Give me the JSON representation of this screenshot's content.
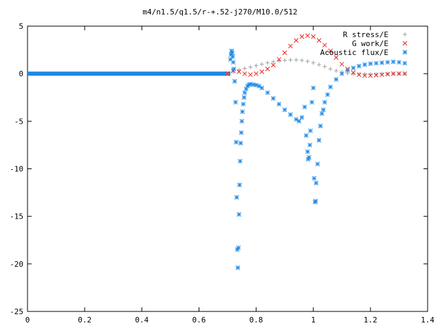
{
  "chart_data": {
    "type": "scatter",
    "title": "m4/n1.5/q1.5/r-+.52-j270/M10.0/512",
    "xlabel": "",
    "ylabel": "",
    "xlim": [
      0,
      1.4
    ],
    "ylim": [
      -25,
      5
    ],
    "x_ticks": [
      0,
      0.2,
      0.4,
      0.6,
      0.8,
      1,
      1.2,
      1.4
    ],
    "x_tick_labels": [
      "0",
      "0.2",
      "0.4",
      "0.6",
      "0.8",
      "1",
      "1.2",
      "1.4"
    ],
    "y_ticks": [
      -25,
      -20,
      -15,
      -10,
      -5,
      0,
      5
    ],
    "y_tick_labels": [
      "-25",
      "-20",
      "-15",
      "-10",
      "-5",
      "0",
      "5"
    ],
    "grid": false,
    "legend_position": "top-right",
    "series": [
      {
        "name": "R stress/E",
        "marker": "+",
        "color": "#a0a0a0",
        "x": [
          0.7,
          0.72,
          0.74,
          0.76,
          0.78,
          0.8,
          0.82,
          0.84,
          0.86,
          0.88,
          0.9,
          0.92,
          0.94,
          0.96,
          0.98,
          1.0,
          1.02,
          1.04,
          1.06,
          1.08,
          1.1,
          1.12,
          1.14,
          1.16,
          1.18,
          1.2,
          1.22,
          1.24,
          1.26,
          1.28,
          1.3,
          1.32
        ],
        "y": [
          0.0,
          0.2,
          0.4,
          0.55,
          0.7,
          0.85,
          1.0,
          1.15,
          1.25,
          1.35,
          1.4,
          1.45,
          1.45,
          1.4,
          1.3,
          1.15,
          0.95,
          0.75,
          0.5,
          0.3,
          0.15,
          0.05,
          0.0,
          -0.05,
          -0.05,
          -0.05,
          -0.05,
          -0.03,
          -0.02,
          0.0,
          0.0,
          0.0
        ]
      },
      {
        "name": "G work/E",
        "marker": "x",
        "color": "#e8231c",
        "x": [
          0.7,
          0.72,
          0.74,
          0.76,
          0.78,
          0.8,
          0.82,
          0.84,
          0.86,
          0.88,
          0.9,
          0.92,
          0.94,
          0.96,
          0.98,
          1.0,
          1.02,
          1.04,
          1.06,
          1.08,
          1.1,
          1.12,
          1.14,
          1.16,
          1.18,
          1.2,
          1.22,
          1.24,
          1.26,
          1.28,
          1.3,
          1.32
        ],
        "y": [
          0.0,
          0.3,
          0.2,
          0.0,
          -0.1,
          0.0,
          0.2,
          0.5,
          0.9,
          1.5,
          2.2,
          2.9,
          3.5,
          3.9,
          4.0,
          3.9,
          3.5,
          3.0,
          2.4,
          1.7,
          1.0,
          0.5,
          0.1,
          -0.1,
          -0.2,
          -0.2,
          -0.15,
          -0.1,
          -0.05,
          0.0,
          0.0,
          0.0
        ]
      },
      {
        "name": "Acoustic flux/E",
        "marker": "*",
        "color": "#1e8ae6",
        "x": [
          0.71,
          0.712,
          0.714,
          0.716,
          0.718,
          0.72,
          0.722,
          0.725,
          0.728,
          0.73,
          0.732,
          0.734,
          0.736,
          0.738,
          0.74,
          0.742,
          0.744,
          0.746,
          0.748,
          0.75,
          0.752,
          0.755,
          0.758,
          0.76,
          0.765,
          0.77,
          0.775,
          0.78,
          0.79,
          0.8,
          0.81,
          0.82,
          0.84,
          0.86,
          0.88,
          0.9,
          0.92,
          0.94,
          0.95,
          0.96,
          0.97,
          0.975,
          0.98,
          0.982,
          0.985,
          0.988,
          0.99,
          0.995,
          1.0,
          1.003,
          1.006,
          1.008,
          1.01,
          1.015,
          1.02,
          1.025,
          1.03,
          1.035,
          1.04,
          1.05,
          1.06,
          1.08,
          1.1,
          1.12,
          1.14,
          1.16,
          1.18,
          1.2,
          1.22,
          1.24,
          1.26,
          1.28,
          1.3,
          1.32
        ],
        "y": [
          1.5,
          2.0,
          2.4,
          2.2,
          1.8,
          1.2,
          0.5,
          -0.8,
          -3.0,
          -7.2,
          -13.0,
          -18.5,
          -20.4,
          -18.3,
          -14.8,
          -11.7,
          -9.2,
          -7.3,
          -6.2,
          -5.0,
          -4.0,
          -3.2,
          -2.5,
          -2.0,
          -1.6,
          -1.3,
          -1.15,
          -1.1,
          -1.15,
          -1.2,
          -1.3,
          -1.5,
          -2.0,
          -2.6,
          -3.2,
          -3.8,
          -4.3,
          -4.8,
          -5.0,
          -4.6,
          -3.5,
          -6.5,
          -8.2,
          -9.0,
          -8.8,
          -7.5,
          -6.0,
          -3.0,
          -1.5,
          -11.0,
          -13.5,
          -13.4,
          -11.5,
          -9.5,
          -7.0,
          -5.5,
          -4.2,
          -3.8,
          -3.0,
          -2.2,
          -1.4,
          -0.6,
          0.0,
          0.35,
          0.6,
          0.8,
          0.95,
          1.05,
          1.1,
          1.15,
          1.2,
          1.25,
          1.2,
          1.1
        ]
      }
    ]
  }
}
